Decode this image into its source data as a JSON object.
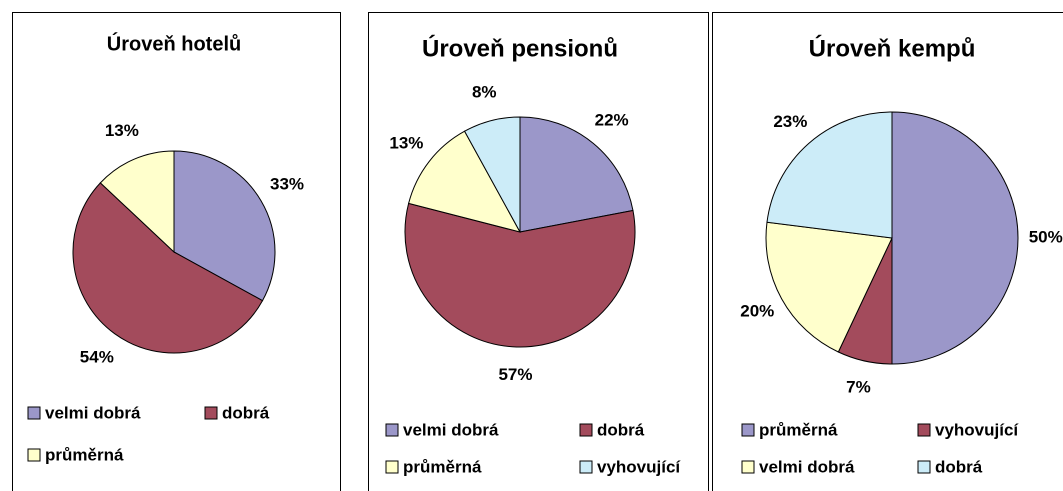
{
  "chart_data": [
    {
      "type": "pie",
      "title": "Úroveň hotelů",
      "categories": [
        "velmi dobrá",
        "dobrá",
        "průměrná"
      ],
      "values": [
        33,
        54,
        13
      ],
      "value_labels": [
        "33%",
        "54%",
        "13%"
      ],
      "colors": [
        "#9b97c9",
        "#a34b5c",
        "#ffffcc"
      ]
    },
    {
      "type": "pie",
      "title": "Úroveň pensionů",
      "categories": [
        "velmi dobrá",
        "dobrá",
        "průměrná",
        "vyhovující"
      ],
      "values": [
        22,
        57,
        13,
        8
      ],
      "value_labels": [
        "22%",
        "57%",
        "13%",
        "8%"
      ],
      "colors": [
        "#9b97c9",
        "#a34b5c",
        "#ffffcc",
        "#ccecf8"
      ]
    },
    {
      "type": "pie",
      "title": "Úroveň kempů",
      "categories": [
        "průměrná",
        "vyhovující",
        "velmi dobrá",
        "dobrá"
      ],
      "values": [
        50,
        7,
        20,
        23
      ],
      "value_labels": [
        "50%",
        "7%",
        "20%",
        "23%"
      ],
      "colors": [
        "#9b97c9",
        "#a34b5c",
        "#ffffcc",
        "#ccecf8"
      ]
    }
  ]
}
